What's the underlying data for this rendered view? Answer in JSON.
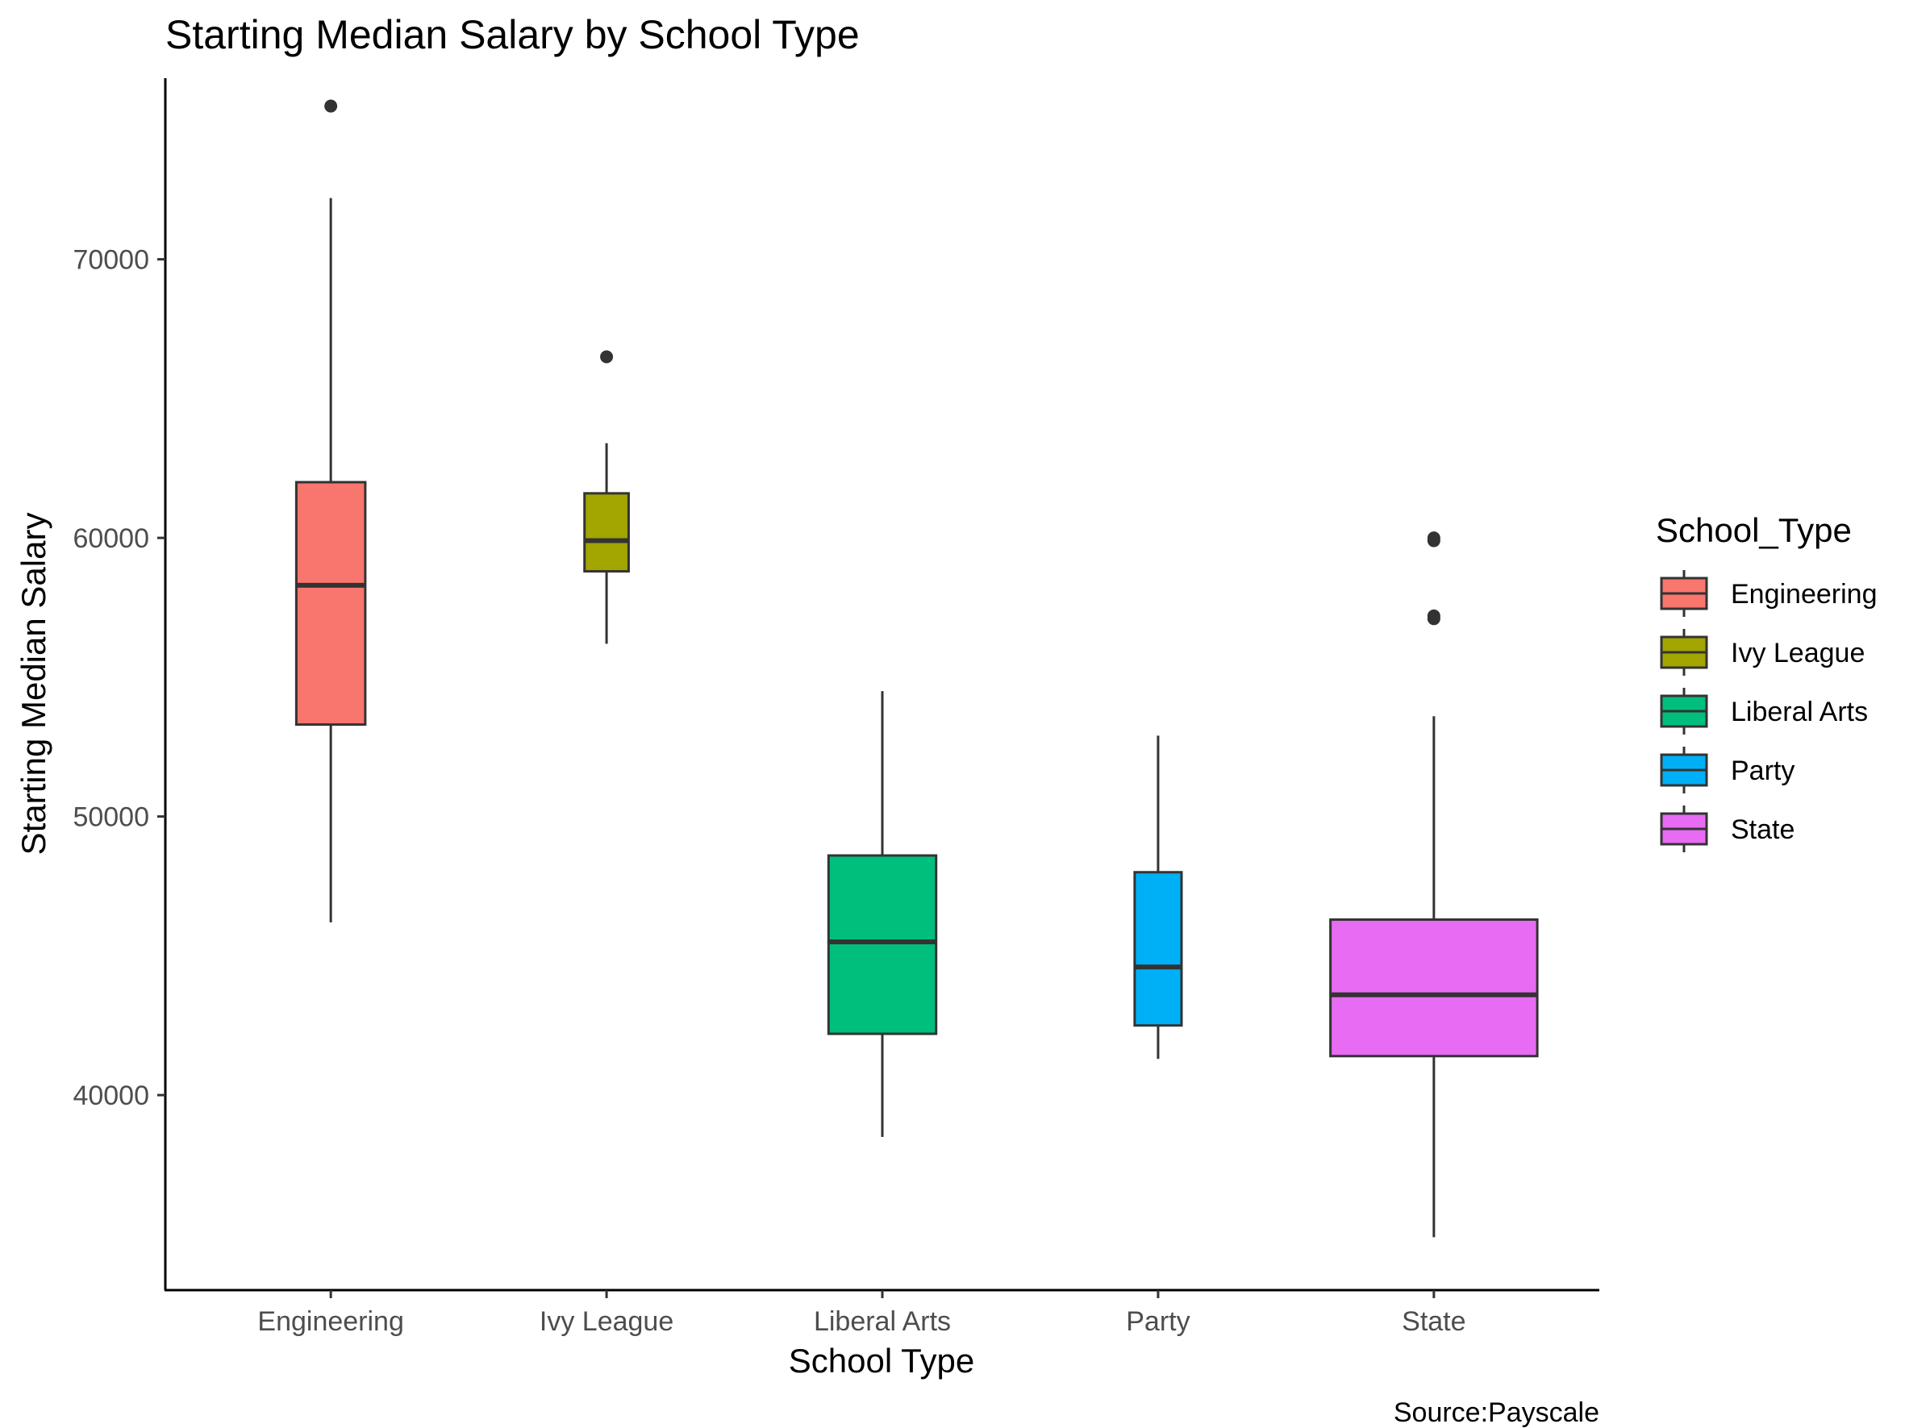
{
  "chart_data": {
    "type": "boxplot",
    "title": "Starting Median Salary by School Type",
    "xlabel": "School Type",
    "ylabel": "Starting Median Salary",
    "caption": "Source:Payscale",
    "ylim": [
      33000,
      76500
    ],
    "yticks": [
      40000,
      50000,
      60000,
      70000
    ],
    "ytick_labels": [
      "40000",
      "50000",
      "60000",
      "70000"
    ],
    "categories": [
      "Engineering",
      "Ivy League",
      "Liberal Arts",
      "Party",
      "State"
    ],
    "series": [
      {
        "name": "Engineering",
        "color": "#F8766D",
        "whisker_low": 46200,
        "q1": 53300,
        "median": 58300,
        "q3": 62000,
        "whisker_high": 72200,
        "outliers": [
          75500
        ],
        "box_width": 0.25
      },
      {
        "name": "Ivy League",
        "color": "#A3A500",
        "whisker_low": 56200,
        "q1": 58800,
        "median": 59900,
        "q3": 61600,
        "whisker_high": 63400,
        "outliers": [
          66500
        ],
        "box_width": 0.16
      },
      {
        "name": "Liberal Arts",
        "color": "#00BF7D",
        "whisker_low": 38500,
        "q1": 42200,
        "median": 45500,
        "q3": 48600,
        "whisker_high": 54500,
        "outliers": [],
        "box_width": 0.39
      },
      {
        "name": "Party",
        "color": "#00B0F6",
        "whisker_low": 41300,
        "q1": 42500,
        "median": 44600,
        "q3": 48000,
        "whisker_high": 52900,
        "outliers": [],
        "box_width": 0.17
      },
      {
        "name": "State",
        "color": "#E76BF3",
        "whisker_low": 34900,
        "q1": 41400,
        "median": 43600,
        "q3": 46300,
        "whisker_high": 53600,
        "outliers": [
          57100,
          57200,
          59900,
          60000
        ],
        "box_width": 0.75
      }
    ],
    "legend": {
      "title": "School_Type",
      "position": "right",
      "entries": [
        "Engineering",
        "Ivy League",
        "Liberal Arts",
        "Party",
        "State"
      ]
    },
    "grid": false
  }
}
